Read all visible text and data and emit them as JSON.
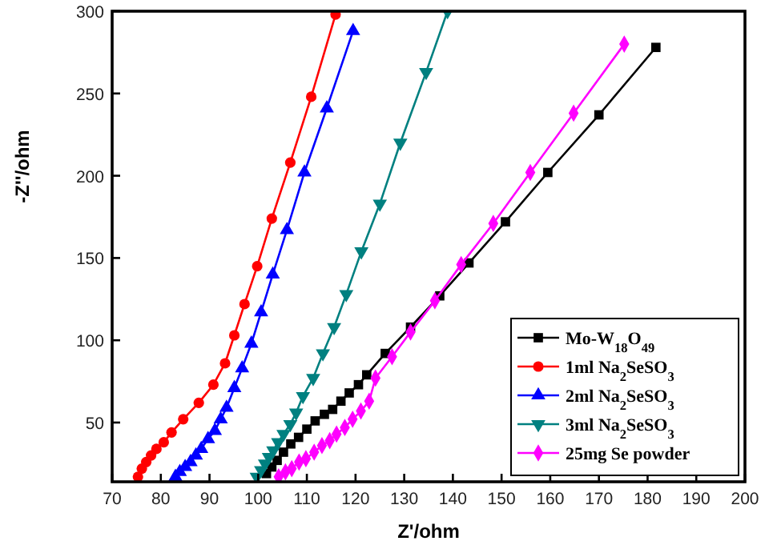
{
  "chart_data": {
    "type": "line",
    "xlabel": "Z'/ohm",
    "ylabel": "-Z''/ohm",
    "xlim": [
      70,
      200
    ],
    "ylim": [
      14,
      300
    ],
    "xticks": [
      70,
      80,
      90,
      100,
      110,
      120,
      130,
      140,
      150,
      160,
      170,
      180,
      190,
      200
    ],
    "yticks": [
      50,
      100,
      150,
      200,
      250,
      300
    ],
    "grid": false,
    "legend": "bottom right",
    "line_style": "solid",
    "series": [
      {
        "name": "Mo-W$_{18}$O$_{49}$",
        "color": "#000000",
        "marker": "square",
        "x": [
          101.7,
          102.8,
          103.9,
          105.2,
          106.7,
          108.3,
          110,
          111.7,
          113.6,
          115.3,
          117,
          118.7,
          120.6,
          122.3,
          126.1,
          131.3,
          137.3,
          143.3,
          150.8,
          159.5,
          170,
          181.7
        ],
        "values": [
          19,
          23,
          27,
          32,
          37,
          41,
          46,
          51,
          55,
          58,
          63,
          68,
          73,
          79,
          92,
          108,
          127,
          147,
          172,
          202,
          237,
          278
        ]
      },
      {
        "name": "1ml Na$_{2}$SeSO$_{3}$",
        "color": "#ff0000",
        "marker": "circle",
        "x": [
          75.3,
          76.1,
          77,
          78,
          79.1,
          80.6,
          82.2,
          84.6,
          87.8,
          90.8,
          93.2,
          95.1,
          97.2,
          99.8,
          102.8,
          106.6,
          110.9,
          115.9
        ],
        "values": [
          17,
          22,
          26,
          30,
          34,
          38,
          44,
          52,
          62,
          73,
          86,
          103,
          122,
          145,
          174,
          208,
          248,
          298
        ]
      },
      {
        "name": "2ml Na$_{2}$SeSO$_{3}$",
        "color": "#0000ff",
        "marker": "triangle",
        "x": [
          83,
          83.9,
          85,
          86.1,
          87.2,
          88.3,
          89.7,
          91.1,
          92.3,
          93.5,
          95.1,
          96.7,
          98.6,
          100.6,
          103,
          105.9,
          109.5,
          114.1,
          119.5
        ],
        "values": [
          17,
          20,
          23,
          26,
          30,
          34,
          40,
          45,
          52,
          59,
          71,
          83,
          98,
          117,
          140,
          167,
          202,
          241,
          288
        ]
      },
      {
        "name": "3ml Na$_{2}$SeSO$_{3}$",
        "color": "#008080",
        "marker": "triangle-down",
        "x": [
          99.7,
          100.6,
          101.4,
          102.2,
          103.1,
          104.1,
          105.2,
          106.6,
          107.8,
          109.2,
          111.3,
          113.3,
          115.6,
          118.1,
          121.2,
          125,
          129.2,
          134.5,
          138.9
        ],
        "values": [
          17,
          21,
          25,
          29,
          33,
          38,
          43,
          49,
          56,
          66,
          77,
          92,
          108,
          128,
          154,
          183,
          220,
          263,
          300
        ]
      },
      {
        "name": "25mg Se powder",
        "color": "#ff00ff",
        "marker": "diamond",
        "x": [
          104.2,
          105.6,
          106.9,
          108.4,
          109.8,
          111.5,
          113.1,
          114.7,
          116.1,
          117.8,
          119.4,
          121.1,
          122.8,
          124.1,
          127.5,
          131.3,
          136.3,
          141.7,
          148.3,
          155.9,
          164.8,
          175.2
        ],
        "values": [
          17,
          20,
          22,
          26,
          28,
          32,
          36,
          39,
          43,
          47,
          52,
          57,
          63,
          77,
          90,
          105,
          124,
          146,
          171,
          202,
          238,
          280
        ]
      }
    ]
  }
}
